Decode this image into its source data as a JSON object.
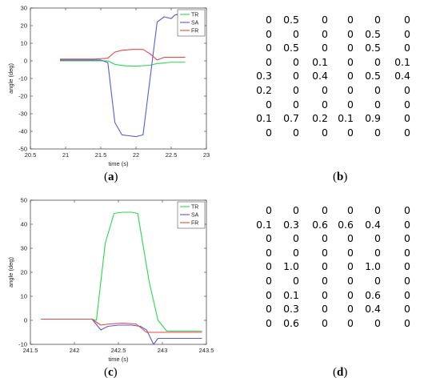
{
  "panels": [
    {
      "label": "a",
      "caption": "(a)"
    },
    {
      "label": "b",
      "caption": "(b)"
    },
    {
      "label": "c",
      "caption": "(c)"
    },
    {
      "label": "d",
      "caption": "(d)"
    }
  ],
  "chart_data": [
    {
      "id": "a",
      "type": "line",
      "xlabel": "time (s)",
      "ylabel": "angle (deg)",
      "xlim": [
        20.5,
        23
      ],
      "ylim": [
        -50,
        30
      ],
      "xticks": [
        "20.5",
        "21",
        "21.5",
        "22",
        "22.5",
        "23"
      ],
      "yticks": [
        "-50",
        "-40",
        "-30",
        "-20",
        "-10",
        "0",
        "10",
        "20",
        "30"
      ],
      "legend_position": "top-right",
      "grid": false,
      "series": [
        {
          "name": "TR",
          "color": "#2bd94a",
          "x": [
            20.92,
            21.4,
            21.6,
            21.7,
            21.85,
            22.0,
            22.2,
            22.3,
            22.4,
            22.5,
            22.7
          ],
          "y": [
            0.0,
            0.0,
            0.0,
            -2.0,
            -2.8,
            -3.0,
            -2.5,
            -1.5,
            -1.2,
            -0.8,
            -0.8
          ]
        },
        {
          "name": "SA",
          "color": "#5a5ad8",
          "x": [
            20.92,
            21.5,
            21.6,
            21.7,
            21.8,
            21.9,
            22.0,
            22.1,
            22.3,
            22.4,
            22.5,
            22.55,
            22.7
          ],
          "y": [
            0.5,
            0.5,
            -1.0,
            -35.0,
            -42.0,
            -42.5,
            -43.0,
            -42.0,
            22.0,
            25.0,
            24.0,
            26.0,
            27.5
          ]
        },
        {
          "name": "FR",
          "color": "#e44a4a",
          "x": [
            20.92,
            21.4,
            21.6,
            21.7,
            21.8,
            21.95,
            22.1,
            22.2,
            22.3,
            22.4,
            22.55,
            22.7
          ],
          "y": [
            1.0,
            1.0,
            1.5,
            5.0,
            6.0,
            6.5,
            6.5,
            4.0,
            0.5,
            2.0,
            2.0,
            2.0
          ]
        }
      ]
    },
    {
      "id": "c",
      "type": "line",
      "xlabel": "time (s)",
      "ylabel": "angle (deg)",
      "xlim": [
        241.5,
        243.5
      ],
      "ylim": [
        -10,
        50
      ],
      "xticks": [
        "241.5",
        "242",
        "242.5",
        "243",
        "243.5"
      ],
      "yticks": [
        "-10",
        "0",
        "10",
        "20",
        "30",
        "40",
        "50"
      ],
      "legend_position": "top-right",
      "grid": false,
      "series": [
        {
          "name": "TR",
          "color": "#2bd94a",
          "x": [
            241.62,
            242.2,
            242.25,
            242.35,
            242.45,
            242.55,
            242.65,
            242.72,
            242.85,
            242.95,
            243.05,
            243.45
          ],
          "y": [
            0.5,
            0.5,
            0.0,
            32.0,
            44.5,
            45.0,
            45.0,
            44.5,
            16.0,
            0.0,
            -4.5,
            -4.5
          ]
        },
        {
          "name": "SA",
          "color": "#5a5ad8",
          "x": [
            241.62,
            242.2,
            242.3,
            242.38,
            242.5,
            242.65,
            242.75,
            242.82,
            242.9,
            242.95,
            243.45
          ],
          "y": [
            0.5,
            0.5,
            -4.0,
            -2.5,
            -2.0,
            -2.0,
            -2.5,
            -4.0,
            -10.0,
            -7.5,
            -7.5
          ]
        },
        {
          "name": "FR",
          "color": "#e44a4a",
          "x": [
            241.62,
            242.2,
            242.3,
            242.4,
            242.55,
            242.7,
            242.82,
            242.95,
            243.45
          ],
          "y": [
            0.5,
            0.5,
            -2.0,
            -1.5,
            -1.2,
            -1.5,
            -5.0,
            -5.0,
            -5.0
          ]
        }
      ]
    },
    {
      "id": "b",
      "type": "table",
      "rows": [
        [
          "0",
          "0.5",
          "0",
          "0",
          "0",
          "0"
        ],
        [
          "0",
          "0",
          "0",
          "0",
          "0.5",
          "0"
        ],
        [
          "0",
          "0.5",
          "0",
          "0",
          "0.5",
          "0"
        ],
        [
          "0",
          "0",
          "0.1",
          "0",
          "0",
          "0.1"
        ],
        [
          "0.3",
          "0",
          "0.4",
          "0",
          "0.5",
          "0.4"
        ],
        [
          "0.2",
          "0",
          "0",
          "0",
          "0",
          "0"
        ],
        [
          "0",
          "0",
          "0",
          "0",
          "0",
          "0"
        ],
        [
          "0.1",
          "0.7",
          "0.2",
          "0.1",
          "0.9",
          "0"
        ],
        [
          "0",
          "0",
          "0",
          "0",
          "0",
          "0"
        ]
      ]
    },
    {
      "id": "d",
      "type": "table",
      "rows": [
        [
          "0",
          "0",
          "0",
          "0",
          "0",
          "0"
        ],
        [
          "0.1",
          "0.3",
          "0.6",
          "0.6",
          "0.4",
          "0"
        ],
        [
          "0",
          "0",
          "0",
          "0",
          "0",
          "0"
        ],
        [
          "0",
          "0",
          "0",
          "0",
          "0",
          "0"
        ],
        [
          "0",
          "1.0",
          "0",
          "0",
          "1.0",
          "0"
        ],
        [
          "0",
          "0",
          "0",
          "0",
          "0",
          "0"
        ],
        [
          "0",
          "0.1",
          "0",
          "0",
          "0.6",
          "0"
        ],
        [
          "0",
          "0.3",
          "0",
          "0",
          "0.4",
          "0"
        ],
        [
          "0",
          "0.6",
          "0",
          "0",
          "0",
          "0"
        ]
      ]
    }
  ]
}
